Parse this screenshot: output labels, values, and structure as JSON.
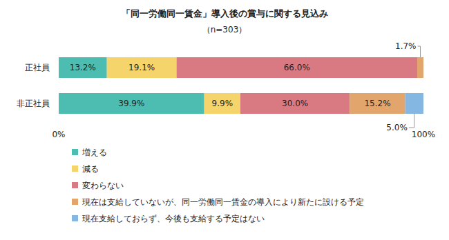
{
  "chart_data": {
    "type": "bar",
    "orientation": "horizontal",
    "stacked": true,
    "data_labels": true,
    "grid": false,
    "tick_labels": "x",
    "title": "「同一労働同一賃金」導入後の賞与に関する見込み",
    "subtitle": "（n=303）",
    "categories": [
      "正社員",
      "非正社員"
    ],
    "xlim": [
      0,
      100
    ],
    "xticks": [
      {
        "value": 0,
        "label": "0%"
      },
      {
        "value": 100,
        "label": "100%"
      }
    ],
    "legend": "bottom",
    "series": [
      {
        "name": "増える",
        "color": "#4dbdb2",
        "values": [
          13.2,
          39.9
        ],
        "value_labels": [
          "13.2%",
          "39.9%"
        ]
      },
      {
        "name": "減る",
        "color": "#f5d46c",
        "values": [
          19.1,
          9.9
        ],
        "value_labels": [
          "19.1%",
          "9.9%"
        ]
      },
      {
        "name": "変わらない",
        "color": "#d97a82",
        "values": [
          66.0,
          30.0
        ],
        "value_labels": [
          "66.0%",
          "30.0%"
        ]
      },
      {
        "name": "現在は支給していないが、同一労働同一賃金の導入により新たに設ける予定",
        "color": "#e2a56c",
        "values": [
          1.7,
          15.2
        ],
        "value_labels": [
          "1.7%",
          "15.2%"
        ]
      },
      {
        "name": "現在支給しておらず、今後も支給する予定はない",
        "color": "#85b7e3",
        "values": [
          0,
          5.0
        ],
        "value_labels": [
          null,
          "5.0%"
        ]
      }
    ]
  }
}
